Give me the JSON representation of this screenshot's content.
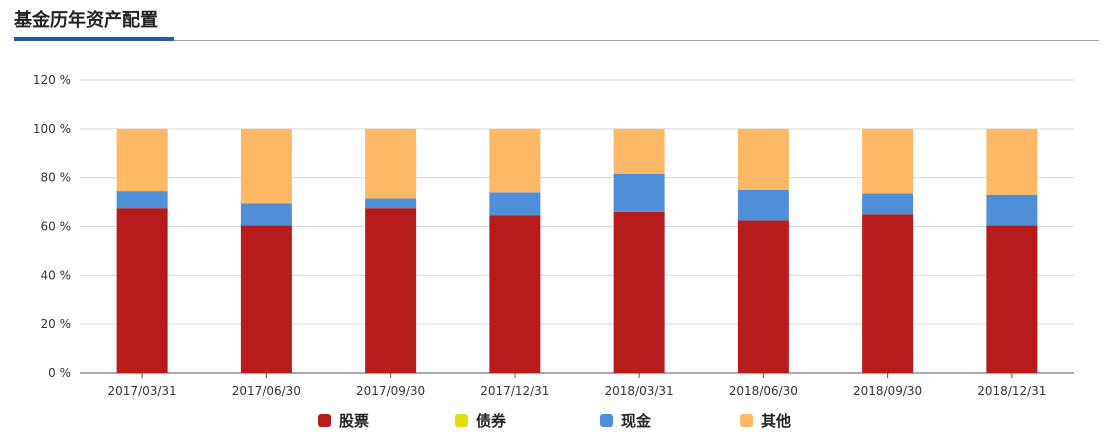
{
  "header": {
    "title": "基金历年资产配置"
  },
  "colors": {
    "stock": "#b71c1c",
    "bond": "#e5dc10",
    "cash": "#4f8fd8",
    "other": "#ffb866"
  },
  "chart_data": {
    "type": "bar",
    "stacked": true,
    "categories": [
      "2017/03/31",
      "2017/06/30",
      "2017/09/30",
      "2017/12/31",
      "2018/03/31",
      "2018/06/30",
      "2018/09/30",
      "2018/12/31"
    ],
    "series": [
      {
        "name": "股票",
        "color": "#b71c1c",
        "values": [
          67.5,
          60.5,
          67.5,
          64.5,
          66,
          62.5,
          65,
          60.5
        ]
      },
      {
        "name": "债券",
        "color": "#e5dc10",
        "values": [
          0,
          0,
          0,
          0,
          0,
          0,
          0,
          0
        ]
      },
      {
        "name": "现金",
        "color": "#4f8fd8",
        "values": [
          7,
          9,
          4,
          9.5,
          15.5,
          12.5,
          8.5,
          12.5
        ]
      },
      {
        "name": "其他",
        "color": "#ffb866",
        "values": [
          25.5,
          30.5,
          28.5,
          26,
          18.5,
          25,
          26.5,
          27
        ]
      }
    ],
    "y_ticks": [
      "0 %",
      "20 %",
      "40 %",
      "60 %",
      "80 %",
      "100 %",
      "120 %"
    ],
    "ylim": [
      0,
      120
    ],
    "grid": true,
    "legend_position": "bottom"
  }
}
